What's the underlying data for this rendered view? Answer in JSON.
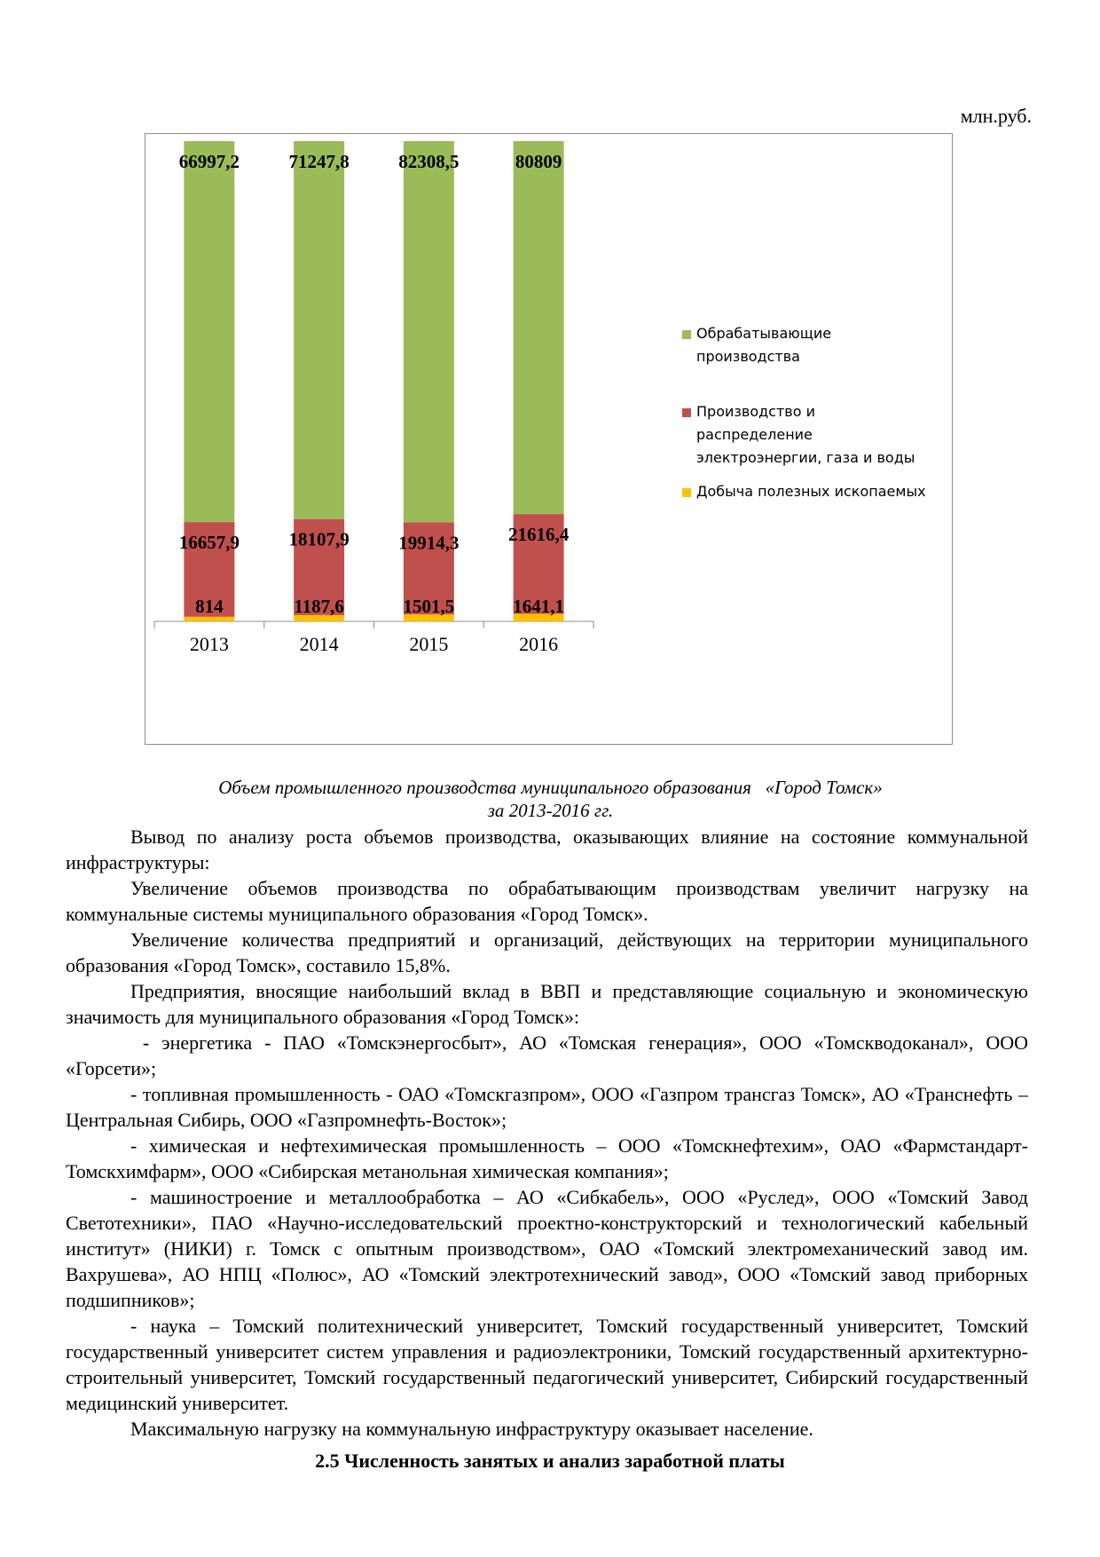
{
  "units_label": "млн.руб.",
  "chart_data": {
    "type": "bar",
    "stacked": true,
    "categories": [
      "2013",
      "2014",
      "2015",
      "2016"
    ],
    "series": [
      {
        "name": "Добыча полезных ископаемых",
        "color": "#FFC000",
        "values": [
          814,
          1187.6,
          1501.5,
          1641.1
        ],
        "labels": [
          "814",
          "1187,6",
          "1501,5",
          "1641,1"
        ]
      },
      {
        "name": "Производство и распределение электроэнергии, газа и воды",
        "color": "#C0504D",
        "values": [
          16657.9,
          18107.9,
          19914.3,
          21616.4
        ],
        "labels": [
          "16657,9",
          "18107,9",
          "19914,3",
          "21616,4"
        ]
      },
      {
        "name": "Обрабатывающие производства",
        "color": "#9BBB59",
        "values": [
          66997.2,
          71247.8,
          82308.5,
          80809
        ],
        "labels": [
          "66997,2",
          "71247,8",
          "82308,5",
          "80809"
        ]
      }
    ],
    "percent_stacked": true,
    "legend_position": "right",
    "grid": false
  },
  "legend": {
    "items": [
      {
        "lines": [
          "Обрабатывающие",
          "производства"
        ],
        "color": "#9BBB59"
      },
      {
        "lines": [
          "Производство и",
          "распределение",
          "электроэнергии, газа и воды"
        ],
        "color": "#C0504D"
      },
      {
        "lines": [
          "Добыча полезных ископаемых"
        ],
        "color": "#FFC000"
      }
    ]
  },
  "caption": {
    "line1": "Объем промышленного производства муниципального образования   «Город Томск»",
    "line2": "за 2013-2016 гг."
  },
  "paragraphs": [
    "Вывод по анализу роста объемов производства, оказывающих влияние на состояние коммунальной инфраструктуры:",
    "Увеличение объемов производства по обрабатывающим производствам увеличит нагрузку на коммунальные системы муниципального образования «Город Томск».",
    "Увеличение количества предприятий и организаций, действующих на территории муниципального образования «Город Томск», составило 15,8%.",
    "Предприятия, вносящие наибольший вклад в ВВП и представляющие социальную и экономическую значимость для муниципального образования «Город Томск»:",
    " - энергетика - ПАО «Томскэнергосбыт», АО «Томская генерация», ООО «Томскводоканал», ООО «Горсети»;",
    "- топливная промышленность - ОАО «Томскгазпром», ООО «Газпром трансгаз Томск», АО «Транснефть – Центральная Сибирь, ООО «Газпромнефть-Восток»;",
    "- химическая и нефтехимическая промышленность – ООО «Томскнефтехим», ОАО «Фармстандарт-Томскхимфарм», ООО «Сибирская метанольная химическая компания»;",
    "- машиностроение и металлообработка – АО «Сибкабель», ООО «Руслед», ООО «Томский Завод Светотехники», ПАО «Научно-исследовательский проектно-конструкторский и технологический кабельный институт» (НИКИ) г. Томск с опытным производством», ОАО «Томский электромеханический завод им. Вахрушева», АО НПЦ «Полюс», АО «Томский электротехнический завод», ООО «Томский завод приборных подшипников»;",
    "- наука – Томский политехнический университет, Томский государственный университет, Томский государственный университет систем управления и радиоэлектроники, Томский государственный архитектурно-строительный университет, Томский государственный педагогический университет, Сибирский государственный медицинский университет.",
    "Максимальную нагрузку на коммунальную инфраструктуру оказывает население."
  ],
  "section_heading": "2.5 Численность занятых и анализ заработной платы"
}
